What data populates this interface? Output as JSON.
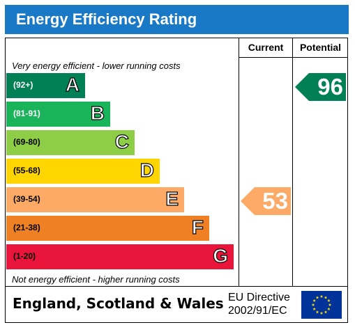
{
  "title": "Energy Efficiency Rating",
  "columns": {
    "current": "Current",
    "potential": "Potential"
  },
  "top_caption": "Very energy efficient - lower running costs",
  "bottom_caption": "Not energy efficient - higher running costs",
  "footer": {
    "region": "England, Scotland & Wales",
    "directive_line1": "EU Directive",
    "directive_line2": "2002/91/EC"
  },
  "chart_data": {
    "type": "bar",
    "title": "Energy Efficiency Rating",
    "categories": [
      "A",
      "B",
      "C",
      "D",
      "E",
      "F",
      "G"
    ],
    "bands": [
      {
        "letter": "A",
        "range": "(92+)",
        "color": "#008054",
        "text_color": "#ffffff"
      },
      {
        "letter": "B",
        "range": "(81-91)",
        "color": "#19b459",
        "text_color": "#ffffff"
      },
      {
        "letter": "C",
        "range": "(69-80)",
        "color": "#8dce46",
        "text_color": "#000000"
      },
      {
        "letter": "D",
        "range": "(55-68)",
        "color": "#ffd500",
        "text_color": "#000000"
      },
      {
        "letter": "E",
        "range": "(39-54)",
        "color": "#fcaa65",
        "text_color": "#000000"
      },
      {
        "letter": "F",
        "range": "(21-38)",
        "color": "#ef8023",
        "text_color": "#000000"
      },
      {
        "letter": "G",
        "range": "(1-20)",
        "color": "#e9153b",
        "text_color": "#000000"
      }
    ],
    "current": {
      "value": 53,
      "band": "E",
      "color": "#fcaa65"
    },
    "potential": {
      "value": 96,
      "band": "A",
      "color": "#008054"
    }
  },
  "colors": {
    "title_bar": "#1a79c7",
    "eu_flag": "#003399",
    "eu_star": "#ffdd00"
  }
}
